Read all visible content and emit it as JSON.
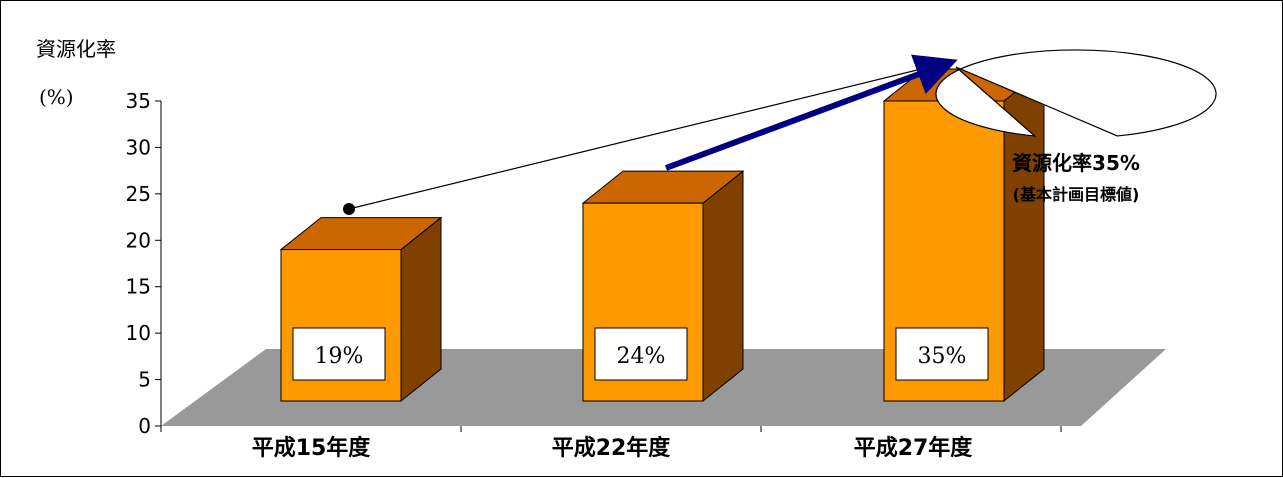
{
  "chart_data": {
    "type": "bar",
    "title": "",
    "ylabel": "資源化率",
    "yunit": "(%)",
    "ylim": [
      0,
      35
    ],
    "yticks": [
      0,
      5,
      10,
      15,
      20,
      25,
      30,
      35
    ],
    "categories": [
      "平成15年度",
      "平成22年度",
      "平成27年度"
    ],
    "values": [
      19,
      24,
      35
    ],
    "data_labels": [
      "19%",
      "24%",
      "35%"
    ],
    "style": "3d-column",
    "colors": {
      "bar_front": "#FF9900",
      "bar_top": "#CC6600",
      "bar_side": "#7F4000",
      "floor": "#999999",
      "arrow": "#000080",
      "marker": "#000000"
    },
    "annotations": {
      "callout_line1": "資源化率35%",
      "callout_line2": "(基本計画目標値)"
    }
  }
}
